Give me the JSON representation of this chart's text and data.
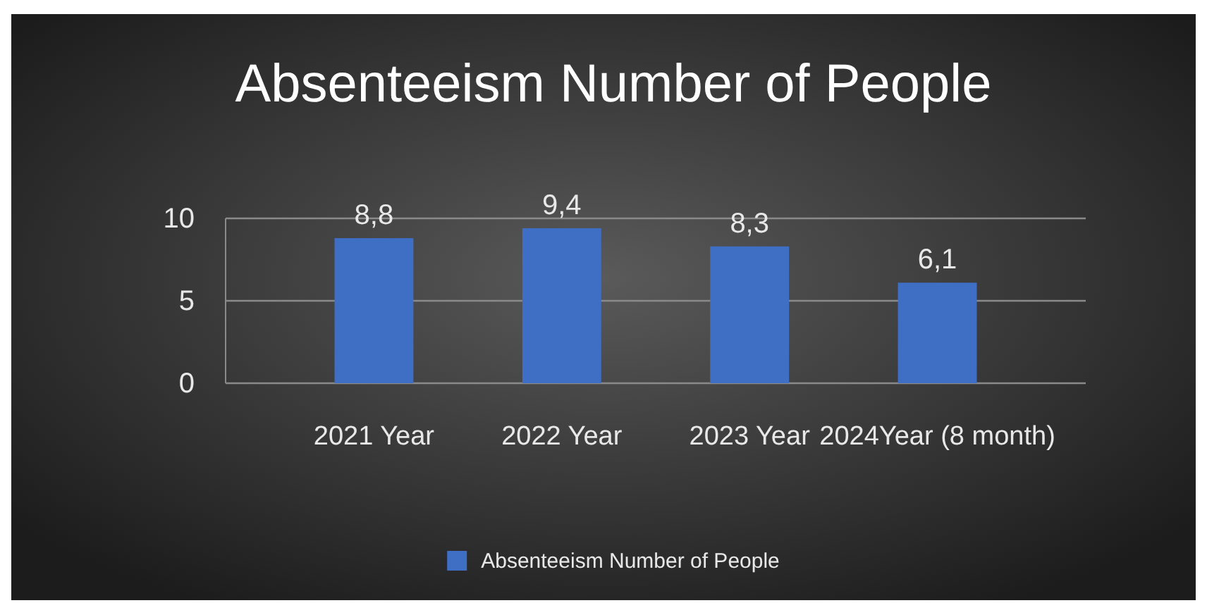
{
  "chart_data": {
    "type": "bar",
    "title": "Absenteeism Number of People",
    "categories": [
      "2021 Year",
      "2022 Year",
      "2023 Year",
      "2024Year (8 month)"
    ],
    "series": [
      {
        "name": "Absenteeism Number of People",
        "color": "#3f6fc4",
        "values": [
          8.8,
          9.4,
          8.3,
          6.1
        ],
        "value_labels": [
          "8,8",
          "9,4",
          "8,3",
          "6,1"
        ]
      }
    ],
    "ylim": [
      0,
      10
    ],
    "yticks": [
      0,
      5,
      10
    ],
    "grid": "y",
    "legend": "bottom"
  }
}
